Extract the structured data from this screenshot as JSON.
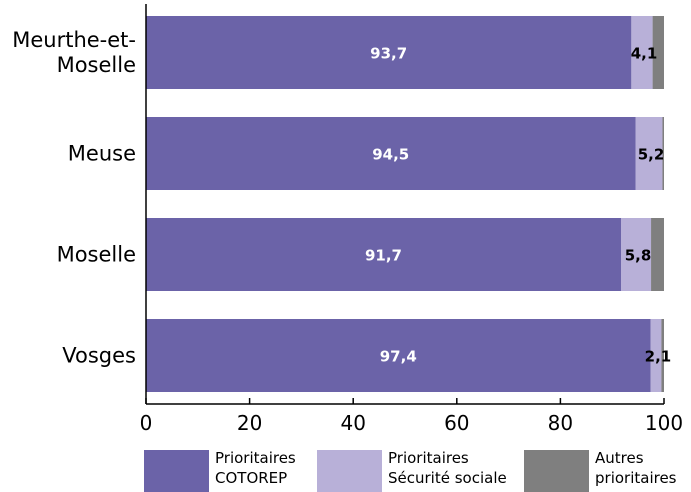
{
  "chart_data": {
    "type": "bar",
    "orientation": "horizontal",
    "stacked": true,
    "categories": [
      "Meurthe-et-\nMoselle",
      "Meuse",
      "Moselle",
      "Vosges"
    ],
    "series": [
      {
        "name": "Prioritaires\nCOTOREP",
        "values": [
          93.7,
          94.5,
          91.7,
          97.4
        ],
        "color": "#6b63a8",
        "labels": [
          "93,7",
          "94,5",
          "91,7",
          "97,4"
        ]
      },
      {
        "name": "Prioritaires\nSécurité sociale",
        "values": [
          4.1,
          5.2,
          5.8,
          2.1
        ],
        "color": "#b8b0d8",
        "labels": [
          "4,1",
          "5,2",
          "5,8",
          "2,1"
        ]
      },
      {
        "name": "Autres\nprioritaires",
        "values": [
          2.2,
          0.3,
          2.5,
          0.5
        ],
        "color": "#7f7f7f",
        "labels": [
          "",
          "",
          "",
          ""
        ]
      }
    ],
    "xlim": [
      0,
      100
    ],
    "xticks": [
      "0",
      "20",
      "40",
      "60",
      "80",
      "100"
    ],
    "grid": false,
    "legend": "bottom"
  }
}
